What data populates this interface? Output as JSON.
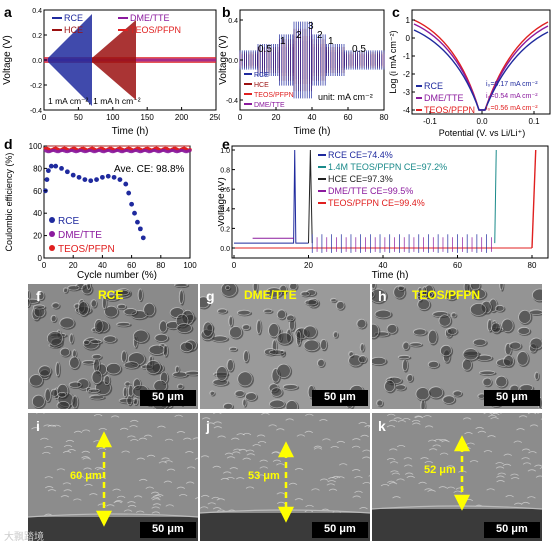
{
  "panel_letters": [
    "a",
    "b",
    "c",
    "d",
    "e",
    "f",
    "g",
    "h",
    "i",
    "j",
    "k"
  ],
  "colors": {
    "RCE": "#1f2a9e",
    "HCE": "#9b1010",
    "DME_TTE": "#8b1a9e",
    "TEOS_PFPN": "#e02020",
    "TEOS14": "#1a8a8a"
  },
  "panel_a": {
    "ylabel": "Voltage (V)",
    "xlabel": "Time (h)",
    "legend": [
      "RCE",
      "HCE",
      "DME/TTE",
      "TEOS/PFPN"
    ],
    "note": "1 mA cm⁻², 1 mA h cm⁻²",
    "xticks": [
      "0",
      "50",
      "100",
      "150",
      "200",
      "250"
    ],
    "yticks": [
      "-0.4",
      "-0.2",
      "0.0",
      "0.2",
      "0.4"
    ]
  },
  "panel_b": {
    "ylabel": "Voltage (V)",
    "xlabel": "Time (h)",
    "legend": [
      "RCE",
      "HCE",
      "TEOS/PFPN",
      "DME/TTE"
    ],
    "rates": [
      "0.5",
      "1",
      "2",
      "3",
      "2",
      "1",
      "0.5"
    ],
    "unit": "unit: mA cm⁻²",
    "xticks": [
      "0",
      "20",
      "40",
      "60",
      "80"
    ],
    "yticks": [
      "-0.4",
      "0.0",
      "0.4"
    ]
  },
  "panel_c": {
    "ylabel": "Log (i mA cm⁻²)",
    "xlabel": "Potential (V. vs Li/Li⁺)",
    "legend": [
      "RCE",
      "DME/TTE",
      "TEOS/PFPN"
    ],
    "i0": [
      "i₀=0.17 mA cm⁻²",
      "i₀=0.54 mA cm⁻²",
      "i₀=0.56 mA cm⁻²"
    ],
    "xticks": [
      "-0.1",
      "0.0",
      "0.1"
    ],
    "yticks": [
      "1",
      "0",
      "-1",
      "-2",
      "-3",
      "-4"
    ]
  },
  "panel_d": {
    "ylabel": "Coulombic efficiency (%)",
    "xlabel": "Cycle number (%)",
    "legend": [
      "RCE",
      "DME/TTE",
      "TEOS/PFPN"
    ],
    "note": "Ave. CE: 98.8%",
    "xticks": [
      "0",
      "20",
      "40",
      "60",
      "80",
      "100"
    ],
    "yticks": [
      "0",
      "20",
      "40",
      "60",
      "80",
      "100"
    ]
  },
  "panel_e": {
    "ylabel": "Voltage (V)",
    "xlabel": "Time (h)",
    "legend": [
      "RCE CE=74.4%",
      "1.4M TEOS/PFPN CE=97.2%",
      "HCE CE=97.3%",
      "DME/TTE CE=99.5%",
      "TEOS/PFPN CE=99.4%"
    ],
    "xticks": [
      "0",
      "20",
      "40",
      "60",
      "80"
    ],
    "yticks": [
      "0.0",
      "0.2",
      "0.4",
      "0.6",
      "0.8",
      "1.0"
    ]
  },
  "sem": {
    "labels": [
      "RCE",
      "DME/TTE",
      "TEOS/PFPN"
    ],
    "scale": "50 μm",
    "thickness": [
      "60 μm",
      "53 μm",
      "52 μm"
    ]
  },
  "watermark": "大飘踏境"
}
